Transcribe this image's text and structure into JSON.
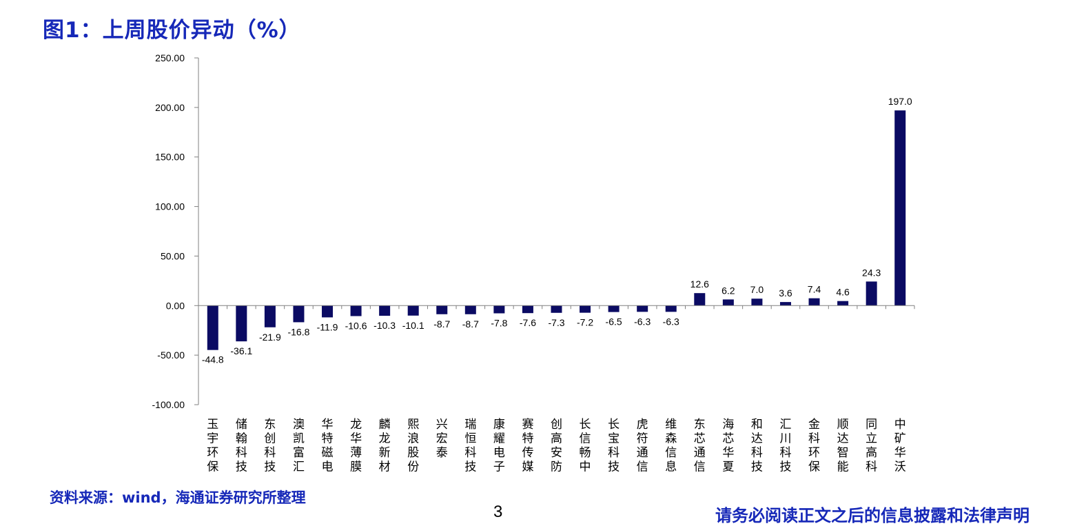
{
  "figure_title": "图1：上周股价异动（%）",
  "source_note": "资料来源：wind，海通证券研究所整理",
  "page_number": "3",
  "disclaimer": "请务必阅读正文之后的信息披露和法律声明",
  "colors": {
    "bar": "#0b0b63",
    "title": "#1628b8",
    "axis": "#808080",
    "text": "#000000"
  },
  "chart_data": {
    "type": "bar",
    "categories": [
      "玉宇环保",
      "储翰科技",
      "东创科技",
      "澳凯富汇",
      "华特磁电",
      "龙华薄膜",
      "麟龙新材",
      "熙浪股份",
      "兴宏泰",
      "瑞恒科技",
      "康耀电子",
      "赛特传媒",
      "创高安防",
      "长信畅中",
      "长宝科技",
      "虎符通信",
      "维森信息",
      "东芯通信",
      "海芯华夏",
      "和达科技",
      "汇川科技",
      "金科环保",
      "顺达智能",
      "同立高科",
      "中矿华沃"
    ],
    "values": [
      -44.8,
      -36.1,
      -21.9,
      -16.8,
      -11.9,
      -10.6,
      -10.3,
      -10.1,
      -8.7,
      -8.7,
      -7.8,
      -7.6,
      -7.3,
      -7.2,
      -6.5,
      -6.3,
      -6.3,
      12.6,
      6.2,
      7.0,
      3.6,
      7.4,
      4.6,
      24.3,
      197.0
    ],
    "data_labels": [
      "-44.8",
      "-36.1",
      "-21.9",
      "-16.8",
      "-11.9",
      "-10.6",
      "-10.3",
      "-10.1",
      "-8.7",
      "-8.7",
      "-7.8",
      "-7.6",
      "-7.3",
      "-7.2",
      "-6.5",
      "-6.3",
      "-6.3",
      "12.6",
      "6.2",
      "7.0",
      "3.6",
      "7.4",
      "4.6",
      "24.3",
      "197.0"
    ],
    "yticks": [
      -100,
      -50,
      0,
      50,
      100,
      150,
      200,
      250
    ],
    "ytick_labels": [
      "-100.00",
      "-50.00",
      "0.00",
      "50.00",
      "100.00",
      "150.00",
      "200.00",
      "250.00"
    ],
    "ylim": [
      -100,
      250
    ],
    "grid": false,
    "legend": "none"
  }
}
